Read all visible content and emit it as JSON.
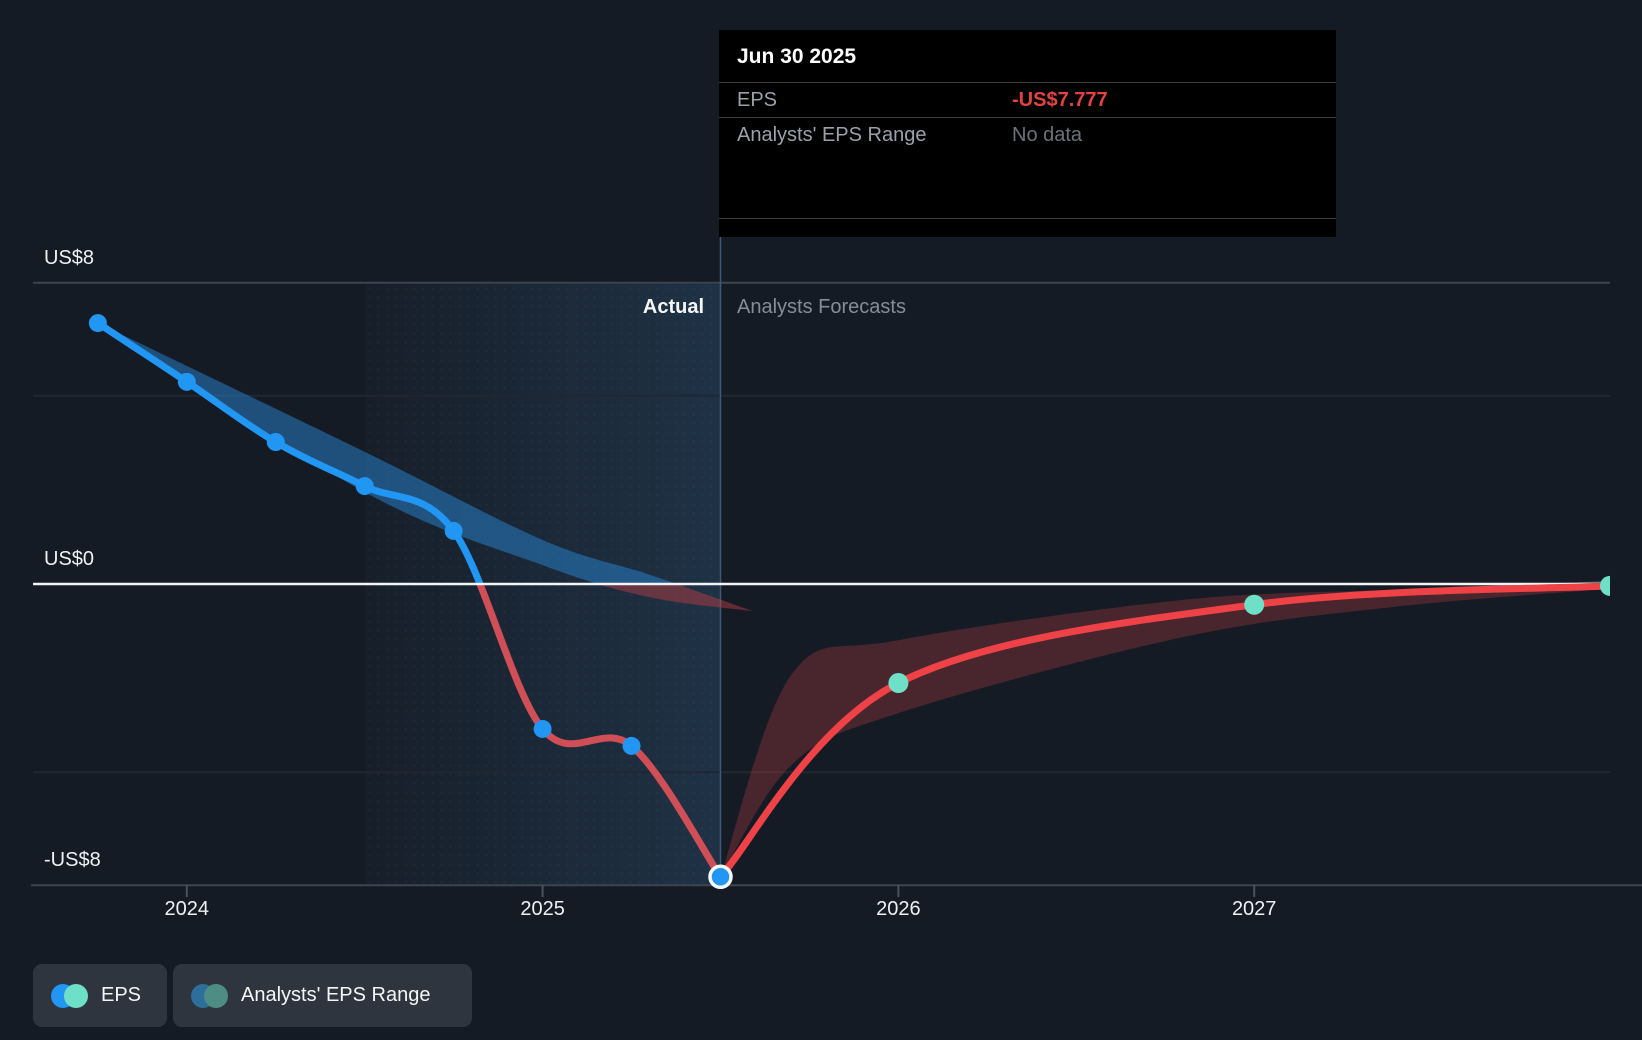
{
  "tooltip": {
    "title": "Jun 30 2025",
    "rows": [
      {
        "label": "EPS",
        "value": "-US$7.777",
        "value_color": "#e64141"
      },
      {
        "label": "Analysts' EPS Range",
        "value": "No data",
        "value_color": "#6c727b"
      }
    ]
  },
  "divider_labels": {
    "left": "Actual",
    "right": "Analysts Forecasts"
  },
  "legend": [
    {
      "label": "EPS",
      "colors": [
        "#2196f3",
        "#6fe0c8"
      ]
    },
    {
      "label": "Analysts' EPS Range",
      "colors": [
        "#2d6e9a",
        "#4e8d84"
      ]
    }
  ],
  "colors": {
    "background": "#151b24",
    "actual_line": "#2196f3",
    "actual_line_negative": "#d04f57",
    "forecast_line": "#ee4247",
    "forecast_marker": "#6fe0c8",
    "zero_line": "#f2f5f7",
    "gridline": "#3e4450",
    "gridline_faint": "#212731",
    "divider": "#3a5a78",
    "negative_value_red": "#e64141"
  },
  "chart_data": {
    "type": "line",
    "x_axis": {
      "ticks": [
        2024,
        2025,
        2026,
        2027
      ],
      "labels": [
        "2024",
        "2025",
        "2026",
        "2027"
      ]
    },
    "y_axis": {
      "ticks": [
        8,
        0,
        -8
      ],
      "labels": [
        "US$8",
        "US$0",
        "-US$8"
      ],
      "range": [
        -8,
        8
      ],
      "unlabeled_gridlines": [
        5,
        -5
      ],
      "unit": "US$ EPS"
    },
    "grid": true,
    "series": [
      {
        "name": "EPS (actual)",
        "points": [
          [
            2023.75,
            6.93
          ],
          [
            2024.0,
            5.37
          ],
          [
            2024.25,
            3.77
          ],
          [
            2024.5,
            2.6
          ],
          [
            2024.75,
            1.41
          ],
          [
            2025.0,
            -3.85
          ],
          [
            2025.25,
            -4.3
          ],
          [
            2025.5,
            -7.777
          ]
        ],
        "highlight_point": [
          2025.5,
          -7.777
        ]
      },
      {
        "name": "EPS (analysts forecast)",
        "points": [
          [
            2025.5,
            -7.777
          ],
          [
            2026.0,
            -2.63
          ],
          [
            2027.0,
            -0.55
          ],
          [
            2028.0,
            -0.05
          ]
        ],
        "marker_points": [
          [
            2026.0,
            -2.63
          ],
          [
            2027.0,
            -0.55
          ],
          [
            2028.0,
            -0.05
          ]
        ]
      }
    ],
    "bands": [
      {
        "name": "analysts-eps-range-past",
        "above_color": "rgba(41,130,205,0.52)",
        "below_color": "rgba(196,62,68,0.45)",
        "points": [
          {
            "x": 2023.75,
            "hi": 6.93,
            "lo": 6.93
          },
          {
            "x": 2024.5,
            "hi": 3.51,
            "lo": 2.44
          },
          {
            "x": 2025.0,
            "hi": 1.17,
            "lo": 0.5
          },
          {
            "x": 2025.3,
            "hi": 0.25,
            "lo": -0.35
          },
          {
            "x": 2025.59,
            "hi": -0.72,
            "lo": -0.72
          }
        ]
      },
      {
        "name": "analysts-eps-range-forecast",
        "above_color": "rgba(98,190,170,0.45)",
        "below_color": "rgba(196,62,68,0.30)",
        "points": [
          {
            "x": 2025.5,
            "hi": -7.777,
            "lo": -7.777
          },
          {
            "x": 2025.7,
            "hi": -2.4,
            "lo": -4.8
          },
          {
            "x": 2026.0,
            "hi": -1.49,
            "lo": -3.43
          },
          {
            "x": 2026.8,
            "hi": -0.42,
            "lo": -1.41
          },
          {
            "x": 2027.4,
            "hi": -0.15,
            "lo": -0.6
          },
          {
            "x": 2028.0,
            "hi": 0.08,
            "lo": -0.13
          }
        ]
      }
    ],
    "annotations": {
      "divider_x": 2025.5,
      "highlight_span_years": 1.0
    }
  }
}
